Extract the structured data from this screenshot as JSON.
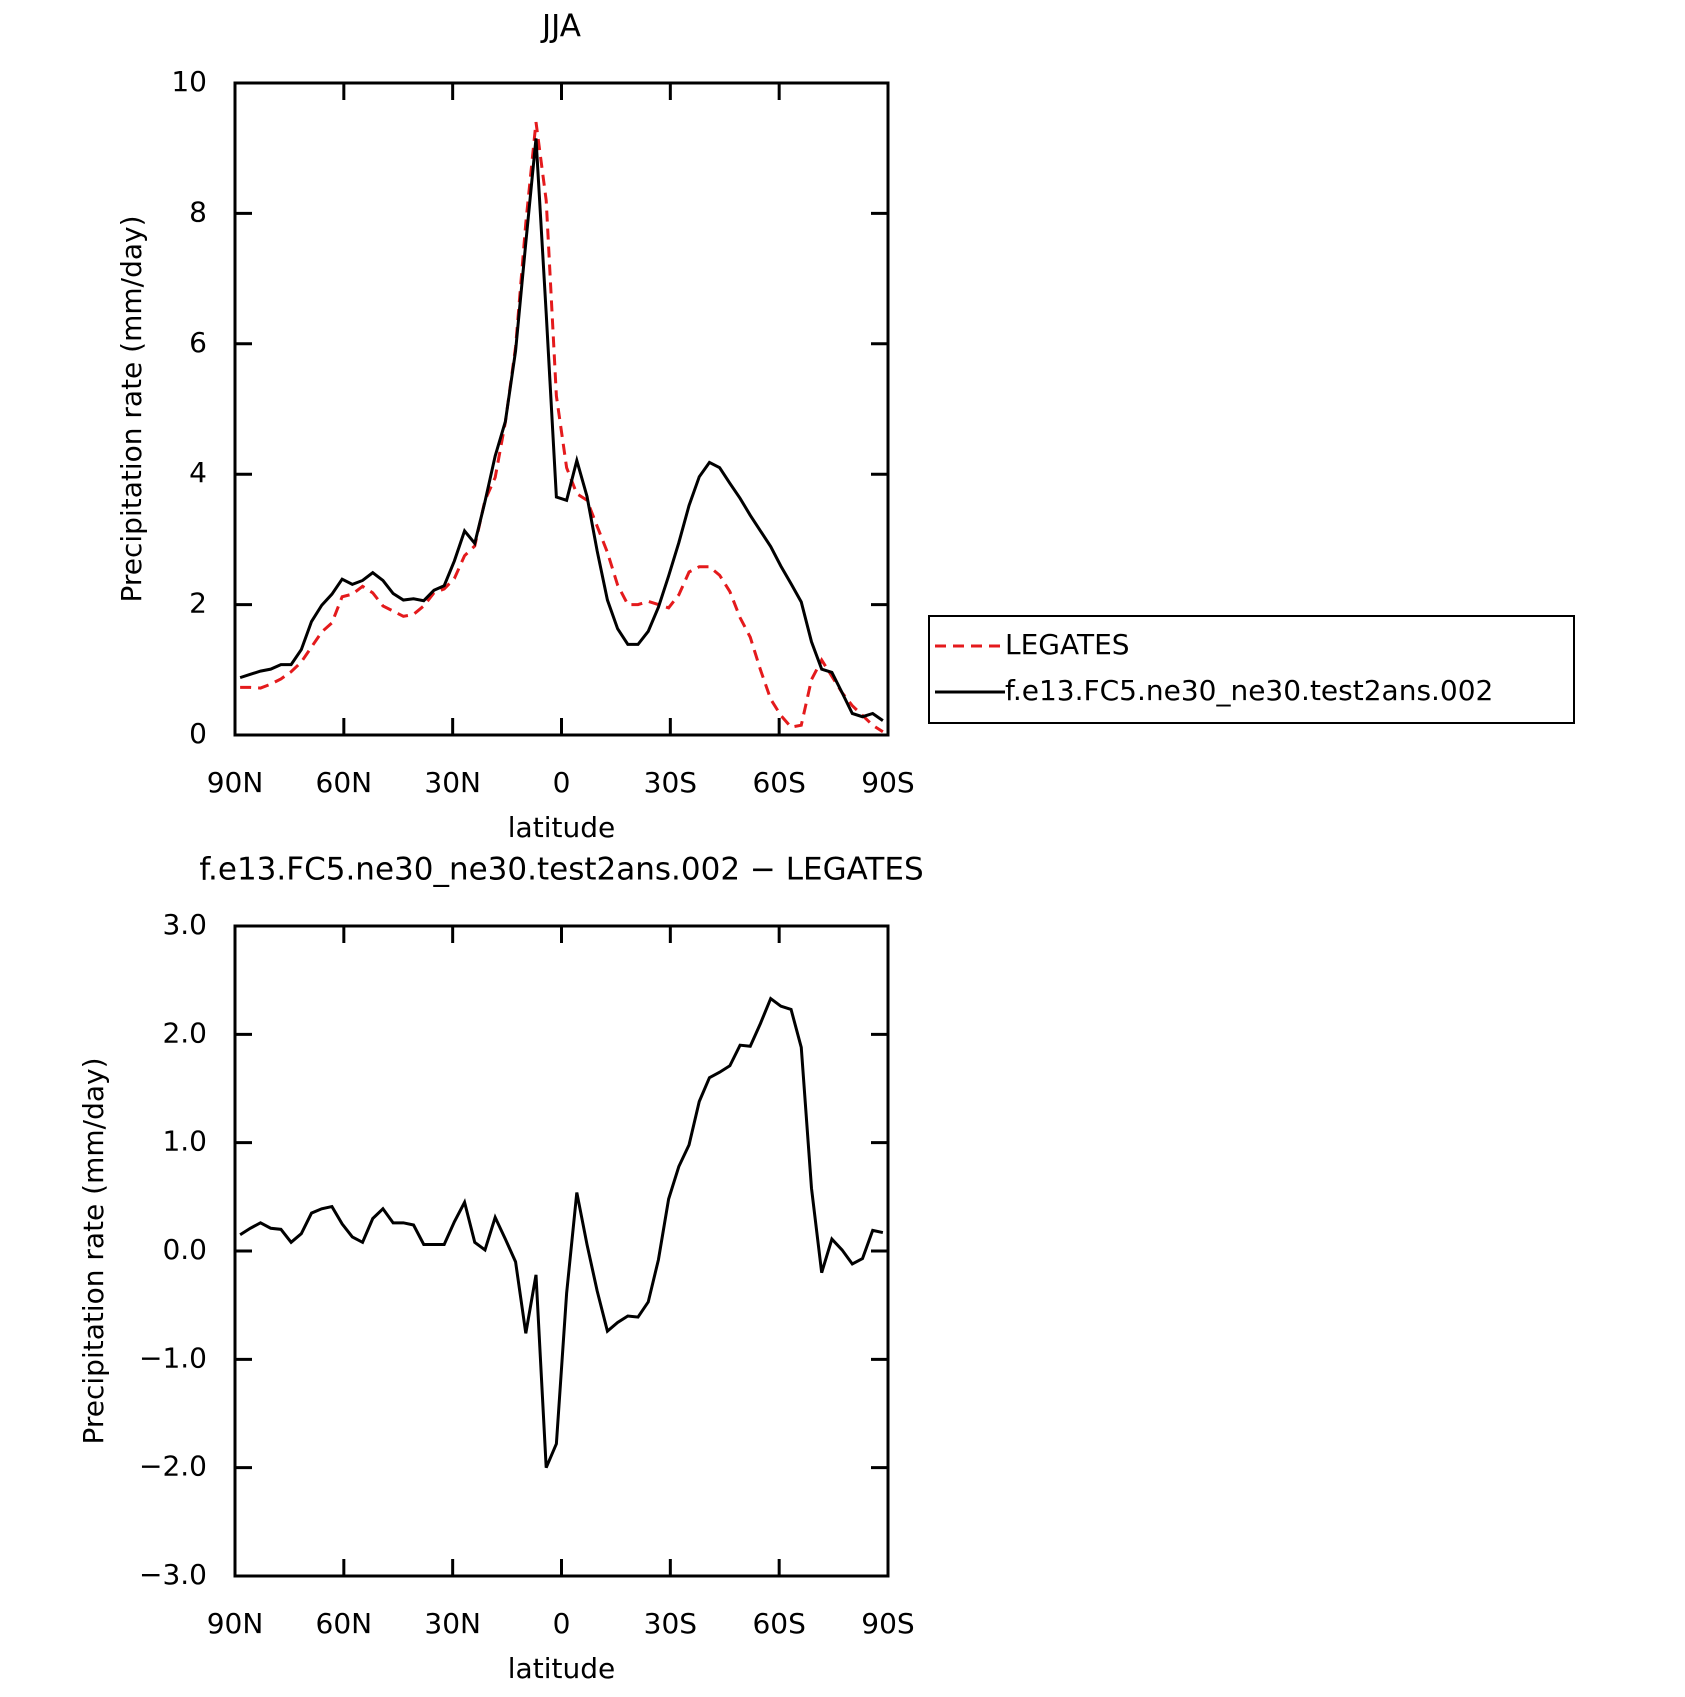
{
  "chart_data": [
    {
      "type": "line",
      "title": "JJA",
      "x_label": "latitude",
      "y_label": "Precipitation rate (mm/day)",
      "x": [
        88.59,
        85.78,
        82.97,
        80.16,
        77.34,
        74.53,
        71.72,
        68.91,
        66.09,
        63.28,
        60.47,
        57.66,
        54.84,
        52.03,
        49.22,
        46.41,
        43.59,
        40.78,
        37.97,
        35.16,
        32.34,
        29.53,
        26.72,
        23.91,
        21.09,
        18.28,
        15.47,
        12.66,
        9.84,
        7.03,
        4.22,
        1.41,
        -1.41,
        -4.22,
        -7.03,
        -9.84,
        -12.66,
        -15.47,
        -18.28,
        -21.09,
        -23.91,
        -26.72,
        -29.53,
        -32.34,
        -35.16,
        -37.97,
        -40.78,
        -43.59,
        -46.41,
        -49.22,
        -52.03,
        -54.84,
        -57.66,
        -60.47,
        -63.28,
        -66.09,
        -68.91,
        -71.72,
        -74.53,
        -77.34,
        -80.16,
        -82.97,
        -85.78,
        -88.59
      ],
      "series": [
        {
          "name": "LEGATES",
          "color": "#e41a1c",
          "linestyle": "dashed",
          "values": [
            0.73,
            0.73,
            0.72,
            0.78,
            0.86,
            0.97,
            1.12,
            1.35,
            1.58,
            1.72,
            2.12,
            2.16,
            2.28,
            2.18,
            1.98,
            1.9,
            1.82,
            1.85,
            1.98,
            2.18,
            2.24,
            2.4,
            2.75,
            2.9,
            3.6,
            3.95,
            4.8,
            5.95,
            7.85,
            9.4,
            8.2,
            5.2,
            4.1,
            3.7,
            3.6,
            3.2,
            2.8,
            2.3,
            2.0,
            2.0,
            2.05,
            2.0,
            1.95,
            2.15,
            2.5,
            2.58,
            2.58,
            2.45,
            2.2,
            1.8,
            1.5,
            1.0,
            0.55,
            0.3,
            0.12,
            0.15,
            0.85,
            1.15,
            0.9,
            0.65,
            0.45,
            0.3,
            0.15,
            0.05
          ]
        },
        {
          "name": "f.e13.FC5.ne30_ne30.test2ans.002",
          "color": "#000000",
          "linestyle": "solid",
          "values": [
            0.88,
            0.93,
            0.98,
            1.01,
            1.08,
            1.08,
            1.31,
            1.74,
            1.99,
            2.16,
            2.39,
            2.31,
            2.37,
            2.49,
            2.37,
            2.17,
            2.07,
            2.09,
            2.06,
            2.22,
            2.29,
            2.67,
            3.13,
            2.94,
            3.58,
            4.28,
            4.81,
            5.89,
            7.55,
            9.15,
            6.47,
            3.65,
            3.6,
            4.21,
            3.66,
            2.82,
            2.07,
            1.63,
            1.39,
            1.39,
            1.59,
            1.96,
            2.44,
            2.95,
            3.52,
            3.96,
            4.18,
            4.1,
            3.86,
            3.63,
            3.37,
            3.13,
            2.89,
            2.59,
            2.32,
            2.04,
            1.43,
            1.01,
            0.96,
            0.65,
            0.33,
            0.28,
            0.33,
            0.22
          ]
        }
      ],
      "xlim": [
        90,
        -90
      ],
      "xticks": [
        {
          "value": 90,
          "label": "90N"
        },
        {
          "value": 60,
          "label": "60N"
        },
        {
          "value": 30,
          "label": "30N"
        },
        0,
        {
          "value": -30,
          "label": "30S"
        },
        {
          "value": -60,
          "label": "60S"
        },
        {
          "value": -90,
          "label": "90S"
        }
      ],
      "ylim": [
        0,
        10
      ],
      "yticks": [
        0,
        2,
        4,
        6,
        8,
        10
      ],
      "legend": "right",
      "grid": false
    },
    {
      "type": "line",
      "title": "f.e13.FC5.ne30_ne30.test2ans.002 − LEGATES",
      "x_label": "latitude",
      "y_label": "Precipitation rate (mm/day)",
      "x": [
        88.59,
        85.78,
        82.97,
        80.16,
        77.34,
        74.53,
        71.72,
        68.91,
        66.09,
        63.28,
        60.47,
        57.66,
        54.84,
        52.03,
        49.22,
        46.41,
        43.59,
        40.78,
        37.97,
        35.16,
        32.34,
        29.53,
        26.72,
        23.91,
        21.09,
        18.28,
        15.47,
        12.66,
        9.84,
        7.03,
        4.22,
        1.41,
        -1.41,
        -4.22,
        -7.03,
        -9.84,
        -12.66,
        -15.47,
        -18.28,
        -21.09,
        -23.91,
        -26.72,
        -29.53,
        -32.34,
        -35.16,
        -37.97,
        -40.78,
        -43.59,
        -46.41,
        -49.22,
        -52.03,
        -54.84,
        -57.66,
        -60.47,
        -63.28,
        -66.09,
        -68.91,
        -71.72,
        -74.53,
        -77.34,
        -80.16,
        -82.97,
        -85.78,
        -88.59
      ],
      "values": [
        0.15,
        0.21,
        0.26,
        0.21,
        0.2,
        0.08,
        0.16,
        0.35,
        0.39,
        0.41,
        0.25,
        0.13,
        0.08,
        0.3,
        0.39,
        0.26,
        0.26,
        0.24,
        0.06,
        0.06,
        0.06,
        0.27,
        0.45,
        0.08,
        0.01,
        0.31,
        0.11,
        -0.1,
        -0.76,
        -0.22,
        -2.0,
        -1.78,
        -0.39,
        0.54,
        0.06,
        -0.37,
        -0.74,
        -0.66,
        -0.6,
        -0.61,
        -0.47,
        -0.08,
        0.48,
        0.78,
        0.98,
        1.38,
        1.6,
        1.65,
        1.71,
        1.9,
        1.89,
        2.1,
        2.33,
        2.26,
        2.23,
        1.88,
        0.58,
        -0.2,
        0.11,
        0.01,
        -0.12,
        -0.07,
        0.19,
        0.17
      ],
      "color": "#000000",
      "xlim": [
        90,
        -90
      ],
      "xticks": [
        {
          "value": 90,
          "label": "90N"
        },
        {
          "value": 60,
          "label": "60N"
        },
        {
          "value": 30,
          "label": "30N"
        },
        0,
        {
          "value": -30,
          "label": "30S"
        },
        {
          "value": -60,
          "label": "60S"
        },
        {
          "value": -90,
          "label": "90S"
        }
      ],
      "ylim": [
        -3,
        3
      ],
      "yticks": [
        {
          "value": -3,
          "label": "−3.0"
        },
        {
          "value": -2,
          "label": "−2.0"
        },
        {
          "value": -1,
          "label": "−1.0"
        },
        {
          "value": 0,
          "label": "0.0"
        },
        {
          "value": 1,
          "label": "1.0"
        },
        {
          "value": 2,
          "label": "2.0"
        },
        {
          "value": 3,
          "label": "3.0"
        }
      ],
      "grid": false
    }
  ]
}
